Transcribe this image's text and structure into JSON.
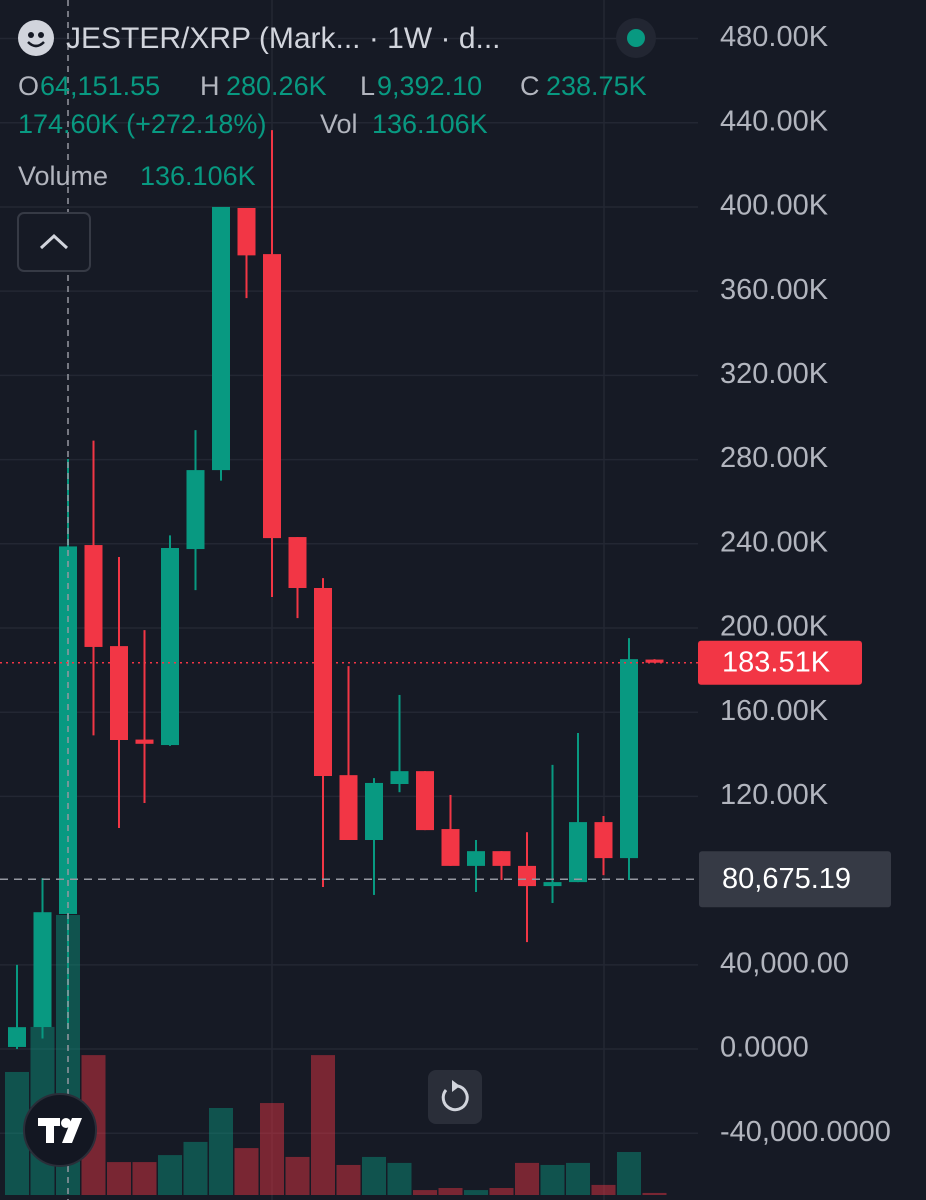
{
  "header": {
    "title": "JESTER/XRP (Mark... · 1W · d...",
    "ohlc": [
      {
        "key": "O",
        "value": "64,151.55"
      },
      {
        "key": "H",
        "value": "280.26K"
      },
      {
        "key": "L",
        "value": "9,392.10"
      },
      {
        "key": "C",
        "value": "238.75K"
      }
    ],
    "change": "174.60K (+272.18%)",
    "vol_key": "Vol",
    "vol_value": "136.106K",
    "volume_label": "Volume",
    "volume_value": "136.106K"
  },
  "chart_data": {
    "type": "candlestick",
    "up_color": "#089981",
    "down_color": "#f23645",
    "grid": true,
    "ylim": [
      -71700,
      498300
    ],
    "yticks": [
      {
        "value": 480000,
        "label": "480.00K"
      },
      {
        "value": 440000,
        "label": "440.00K"
      },
      {
        "value": 400000,
        "label": "400.00K"
      },
      {
        "value": 360000,
        "label": "360.00K"
      },
      {
        "value": 320000,
        "label": "320.00K"
      },
      {
        "value": 280000,
        "label": "280.00K"
      },
      {
        "value": 240000,
        "label": "240.00K"
      },
      {
        "value": 200000,
        "label": "200.00K"
      },
      {
        "value": 160000,
        "label": "160.00K"
      },
      {
        "value": 120000,
        "label": "120.00K"
      },
      {
        "value": 40000,
        "label": "40,000.00"
      },
      {
        "value": 0,
        "label": "0.0000"
      },
      {
        "value": -40000,
        "label": "-40,000.0000"
      }
    ],
    "last_price": {
      "value": 183510,
      "label": "183.51K"
    },
    "crosshair_price": {
      "value": 80675.19,
      "label": "80,675.19"
    },
    "open": [
      1000,
      10450,
      64151.55,
      239400,
      191400,
      147000,
      144400,
      237500,
      275000,
      399500,
      377600,
      243200,
      219000,
      130100,
      99300,
      125900,
      132000,
      104500,
      87000,
      94000,
      87000,
      77400,
      79300,
      107800,
      90700,
      185000
    ],
    "high": [
      40000,
      81200,
      280260,
      289000,
      233700,
      199000,
      244000,
      294000,
      400000,
      399500,
      436500,
      243200,
      223700,
      181900,
      128700,
      168200,
      132000,
      120700,
      99300,
      94000,
      103000,
      135000,
      150100,
      110700,
      195200,
      185200
    ],
    "low": [
      0,
      5000,
      9392.1,
      149000,
      105000,
      116900,
      144000,
      218000,
      270000,
      356700,
      214700,
      204700,
      77000,
      99300,
      73200,
      122000,
      104000,
      87000,
      74600,
      80300,
      50800,
      69400,
      79300,
      82600,
      80300,
      183510
    ],
    "close": [
      10400,
      65000,
      238750,
      191000,
      146800,
      145000,
      238000,
      275000,
      400000,
      377000,
      242700,
      219000,
      129700,
      99300,
      126400,
      132000,
      104000,
      87000,
      94000,
      87000,
      77400,
      79300,
      107800,
      90700,
      185200,
      183510
    ],
    "volume": [
      59800,
      81700,
      136106,
      68000,
      16000,
      16000,
      19400,
      25800,
      42300,
      22800,
      44700,
      18500,
      68000,
      14600,
      18500,
      15600,
      2400,
      3400,
      2400,
      3400,
      15600,
      14600,
      15600,
      4900,
      20900,
      1000
    ]
  }
}
